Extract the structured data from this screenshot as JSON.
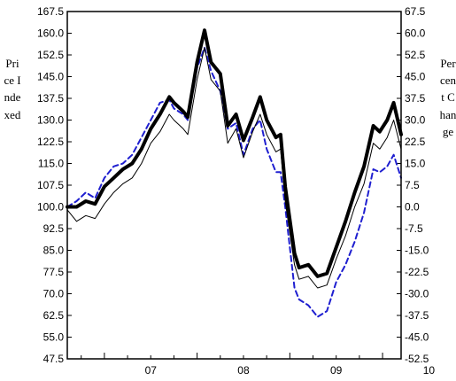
{
  "chart_data": {
    "type": "line",
    "left_axis": {
      "label": "Price Indexed",
      "ylim": [
        47.5,
        167.5
      ],
      "ticks": [
        "47.5",
        "55.0",
        "62.5",
        "70.0",
        "77.5",
        "85.0",
        "92.5",
        "100.0",
        "107.5",
        "115.0",
        "122.5",
        "130.0",
        "137.5",
        "145.0",
        "152.5",
        "160.0",
        "167.5"
      ]
    },
    "right_axis": {
      "label": "Percent Change",
      "ylim": [
        -52.5,
        67.5
      ],
      "ticks": [
        "-52.5",
        "-45.0",
        "-37.5",
        "-30.0",
        "-22.5",
        "-15.0",
        "-7.5",
        "0.0",
        "7.5",
        "15.0",
        "22.5",
        "30.0",
        "37.5",
        "45.0",
        "52.5",
        "60.0",
        "67.5"
      ]
    },
    "x_tick_labels": [
      "07",
      "08",
      "09",
      "10"
    ],
    "xlim": [
      2006.6,
      2010.2
    ],
    "grid": false,
    "series": [
      {
        "style": "thick-black",
        "color": "#000000",
        "x": [
          2006.6,
          2006.7,
          2006.8,
          2006.9,
          2007.0,
          2007.1,
          2007.2,
          2007.3,
          2007.4,
          2007.5,
          2007.6,
          2007.7,
          2007.75,
          2007.85,
          2007.9,
          2008.0,
          2008.08,
          2008.15,
          2008.25,
          2008.33,
          2008.42,
          2008.5,
          2008.6,
          2008.68,
          2008.75,
          2008.85,
          2008.9,
          2008.95,
          2009.05,
          2009.1,
          2009.2,
          2009.3,
          2009.4,
          2009.5,
          2009.6,
          2009.7,
          2009.8,
          2009.9,
          2009.97,
          2010.05,
          2010.12,
          2010.2
        ],
        "values": [
          100,
          100,
          102,
          101,
          107,
          110,
          113,
          115,
          120,
          127,
          132,
          138,
          136,
          133,
          131,
          150,
          161,
          150,
          146,
          128,
          132,
          123,
          131,
          138,
          130,
          124,
          125,
          107,
          84,
          79,
          80,
          76,
          77,
          86,
          95,
          105,
          114,
          128,
          126,
          130,
          136,
          125
        ]
      },
      {
        "style": "thin-black",
        "color": "#000000",
        "x": [
          2006.6,
          2006.7,
          2006.8,
          2006.9,
          2007.0,
          2007.1,
          2007.2,
          2007.3,
          2007.4,
          2007.5,
          2007.6,
          2007.7,
          2007.75,
          2007.85,
          2007.9,
          2008.0,
          2008.08,
          2008.15,
          2008.25,
          2008.33,
          2008.42,
          2008.5,
          2008.6,
          2008.68,
          2008.75,
          2008.85,
          2008.9,
          2008.95,
          2009.05,
          2009.1,
          2009.2,
          2009.3,
          2009.4,
          2009.5,
          2009.6,
          2009.7,
          2009.8,
          2009.9,
          2009.97,
          2010.05,
          2010.12,
          2010.2
        ],
        "values": [
          99,
          95,
          97,
          96,
          101,
          105,
          108,
          110,
          115,
          122,
          126,
          132,
          130,
          127,
          125,
          144,
          155,
          144,
          140,
          122,
          127,
          117,
          126,
          132,
          125,
          119,
          120,
          102,
          80,
          75,
          76,
          72,
          73,
          82,
          90,
          100,
          108,
          122,
          120,
          124,
          130,
          120
        ]
      },
      {
        "style": "dashed-blue",
        "color": "#1f1fd0",
        "x": [
          2006.6,
          2006.7,
          2006.8,
          2006.9,
          2007.0,
          2007.1,
          2007.2,
          2007.3,
          2007.4,
          2007.5,
          2007.6,
          2007.7,
          2007.75,
          2007.85,
          2007.9,
          2008.0,
          2008.08,
          2008.15,
          2008.25,
          2008.33,
          2008.42,
          2008.5,
          2008.6,
          2008.68,
          2008.75,
          2008.85,
          2008.9,
          2008.95,
          2009.05,
          2009.1,
          2009.2,
          2009.3,
          2009.4,
          2009.5,
          2009.6,
          2009.7,
          2009.8,
          2009.9,
          2009.97,
          2010.05,
          2010.12,
          2010.2
        ],
        "values": [
          100,
          102,
          105,
          103,
          110,
          114,
          115,
          118,
          124,
          130,
          136,
          137,
          134,
          132,
          130,
          148,
          155,
          147,
          140,
          127,
          129,
          118,
          127,
          130,
          120,
          112,
          112,
          100,
          72,
          68,
          66,
          62,
          64,
          74,
          80,
          88,
          98,
          113,
          112,
          114,
          118,
          110
        ]
      }
    ]
  }
}
